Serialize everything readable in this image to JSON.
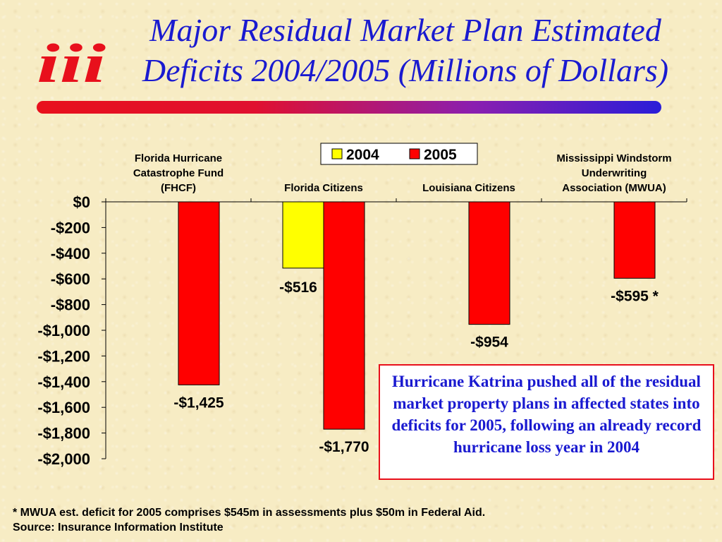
{
  "slide": {
    "title_line1": "Major Residual Market Plan Estimated",
    "title_line2": "Deficits 2004/2005 (Millions of Dollars)",
    "logo_text": "iii",
    "callout": "Hurricane Katrina pushed all of the residual market property plans in affected states into deficits for 2005, following an already record hurricane loss year in 2004",
    "footnote_line1": "* MWUA est. deficit for 2005 comprises $545m in assessments plus $50m in Federal Aid.",
    "footnote_line2": "Source: Insurance Information Institute"
  },
  "colors": {
    "title": "#1a1ad0",
    "series_2004": "#ffff00",
    "series_2005": "#ff0000",
    "callout_border": "#e8101c"
  },
  "chart_data": {
    "type": "bar",
    "categories": [
      [
        "Florida Hurricane",
        "Catastrophe Fund",
        "(FHCF)"
      ],
      [
        "Florida Citizens"
      ],
      [
        "Louisiana Citizens"
      ],
      [
        "Mississippi Windstorm",
        "Underwriting",
        "Association (MWUA)"
      ]
    ],
    "series": [
      {
        "name": "2004",
        "color": "#ffff00",
        "values": [
          null,
          -516,
          null,
          null
        ],
        "labels": [
          null,
          "-$516",
          null,
          null
        ]
      },
      {
        "name": "2005",
        "color": "#ff0000",
        "values": [
          -1425,
          -1770,
          -954,
          -595
        ],
        "labels": [
          "-$1,425",
          "-$1,770",
          "-$954",
          "-$595 *"
        ]
      }
    ],
    "ylim": [
      -2000,
      0
    ],
    "yticks": [
      0,
      -200,
      -400,
      -600,
      -800,
      -1000,
      -1200,
      -1400,
      -1600,
      -1800,
      -2000
    ],
    "ytick_labels": [
      "$0",
      "-$200",
      "-$400",
      "-$600",
      "-$800",
      "-$1,000",
      "-$1,200",
      "-$1,400",
      "-$1,600",
      "-$1,800",
      "-$2,000"
    ],
    "legend": "top-center",
    "grid": false
  }
}
